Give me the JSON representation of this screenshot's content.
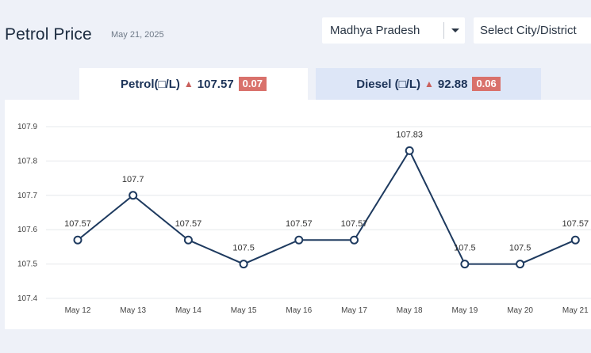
{
  "header": {
    "title": "Petrol Price",
    "date": "May 21, 2025"
  },
  "filters": {
    "state": "Madhya Pradesh",
    "city_placeholder": "Select City/District"
  },
  "tabs": [
    {
      "label": "Petrol(□/L)",
      "arrow": "▲",
      "price": "107.57",
      "change": "0.07",
      "active": true
    },
    {
      "label": "Diesel (□/L)",
      "arrow": "▲",
      "price": "92.88",
      "change": "0.06",
      "active": false
    }
  ],
  "colors": {
    "line": "#1e3a5f",
    "change_badge": "#d9716b",
    "active_tab": "#ffffff",
    "inactive_tab": "#dde6f7",
    "background": "#eef1f8"
  },
  "icons": {
    "dropdown": "caret-down-icon",
    "increase": "triangle-up-icon"
  },
  "chart_data": {
    "type": "line",
    "categories": [
      "May 12",
      "May 13",
      "May 14",
      "May 15",
      "May 16",
      "May 17",
      "May 18",
      "May 19",
      "May 20",
      "May 21"
    ],
    "values": [
      107.57,
      107.7,
      107.57,
      107.5,
      107.57,
      107.57,
      107.83,
      107.5,
      107.5,
      107.57
    ],
    "labels": [
      "107.57",
      "107.7",
      "107.57",
      "107.5",
      "107.57",
      "107.57",
      "107.83",
      "107.5",
      "107.5",
      "107.57"
    ],
    "yticks": [
      "107.4",
      "107.5",
      "107.6",
      "107.7",
      "107.8",
      "107.9"
    ],
    "ylim": [
      107.4,
      107.9
    ],
    "grid": true,
    "title": "",
    "xlabel": "",
    "ylabel": ""
  }
}
